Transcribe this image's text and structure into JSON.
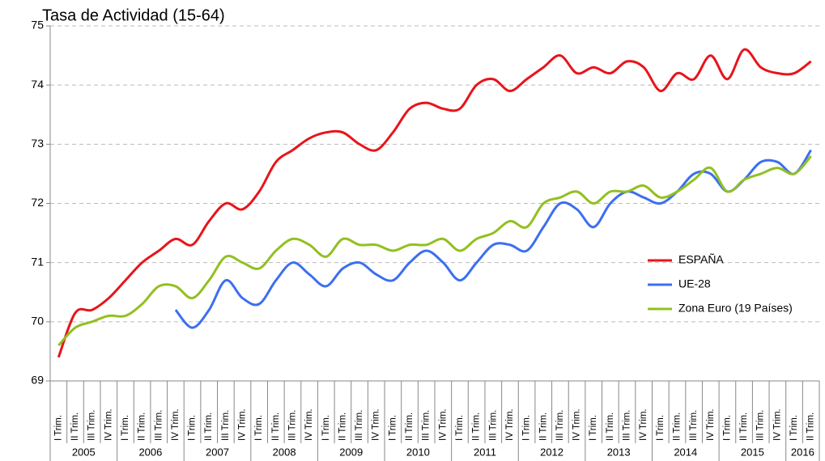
{
  "chart_data": {
    "type": "line",
    "title": "Tasa de Actividad (15-64)",
    "categories": [
      "I Trim.",
      "II Trim.",
      "III Trim.",
      "IV Trim.",
      "I Trim.",
      "II Trim.",
      "III Trim.",
      "IV Trim.",
      "I Trim.",
      "II Trim.",
      "III Trim.",
      "IV Trim.",
      "I Trim.",
      "II Trim.",
      "III Trim.",
      "IV Trim.",
      "I Trim.",
      "II Trim.",
      "III Trim.",
      "IV Trim.",
      "I Trim.",
      "II Trim.",
      "III Trim.",
      "IV Trim.",
      "I Trim.",
      "II Trim.",
      "III Trim.",
      "IV Trim.",
      "I Trim.",
      "II Trim.",
      "III Trim.",
      "IV Trim.",
      "I Trim.",
      "II Trim.",
      "III Trim.",
      "IV Trim.",
      "I Trim.",
      "II Trim.",
      "III Trim.",
      "IV Trim.",
      "I Trim.",
      "II Trim.",
      "III Trim.",
      "IV Trim.",
      "I Trim.",
      "II Trim."
    ],
    "years": [
      "2005",
      "2006",
      "2007",
      "2008",
      "2009",
      "2010",
      "2011",
      "2012",
      "2013",
      "2014",
      "2015",
      "2016"
    ],
    "series": [
      {
        "name": "ESPAÑA",
        "color": "#e8141b",
        "values": [
          69.4,
          70.15,
          70.2,
          70.4,
          70.7,
          71.0,
          71.2,
          71.4,
          71.3,
          71.7,
          72.0,
          71.9,
          72.2,
          72.7,
          72.9,
          73.1,
          73.2,
          73.2,
          73.0,
          72.9,
          73.2,
          73.6,
          73.7,
          73.6,
          73.6,
          74.0,
          74.1,
          73.9,
          74.1,
          74.3,
          74.5,
          74.2,
          74.3,
          74.2,
          74.4,
          74.3,
          73.9,
          74.2,
          74.1,
          74.5,
          74.1,
          74.6,
          74.3,
          74.2,
          74.2,
          74.4
        ]
      },
      {
        "name": "UE-28",
        "color": "#3b6ff0",
        "values": [
          null,
          null,
          null,
          null,
          null,
          null,
          null,
          70.2,
          69.9,
          70.2,
          70.7,
          70.4,
          70.3,
          70.7,
          71.0,
          70.8,
          70.6,
          70.9,
          71.0,
          70.8,
          70.7,
          71.0,
          71.2,
          71.0,
          70.7,
          71.0,
          71.3,
          71.3,
          71.2,
          71.6,
          72.0,
          71.9,
          71.6,
          72.0,
          72.2,
          72.1,
          72.0,
          72.2,
          72.5,
          72.5,
          72.2,
          72.4,
          72.7,
          72.7,
          72.5,
          72.9
        ]
      },
      {
        "name": "Zona Euro (19 Países)",
        "color": "#92c020",
        "values": [
          69.6,
          69.9,
          70.0,
          70.1,
          70.1,
          70.3,
          70.6,
          70.6,
          70.4,
          70.7,
          71.1,
          71.0,
          70.9,
          71.2,
          71.4,
          71.3,
          71.1,
          71.4,
          71.3,
          71.3,
          71.2,
          71.3,
          71.3,
          71.4,
          71.2,
          71.4,
          71.5,
          71.7,
          71.6,
          72.0,
          72.1,
          72.2,
          72.0,
          72.2,
          72.2,
          72.3,
          72.1,
          72.2,
          72.4,
          72.6,
          72.2,
          72.4,
          72.5,
          72.6,
          72.5,
          72.8
        ]
      }
    ],
    "ylim": [
      69,
      75
    ],
    "yticks": [
      69,
      70,
      71,
      72,
      73,
      74,
      75
    ],
    "grid": true,
    "legend": "right"
  }
}
